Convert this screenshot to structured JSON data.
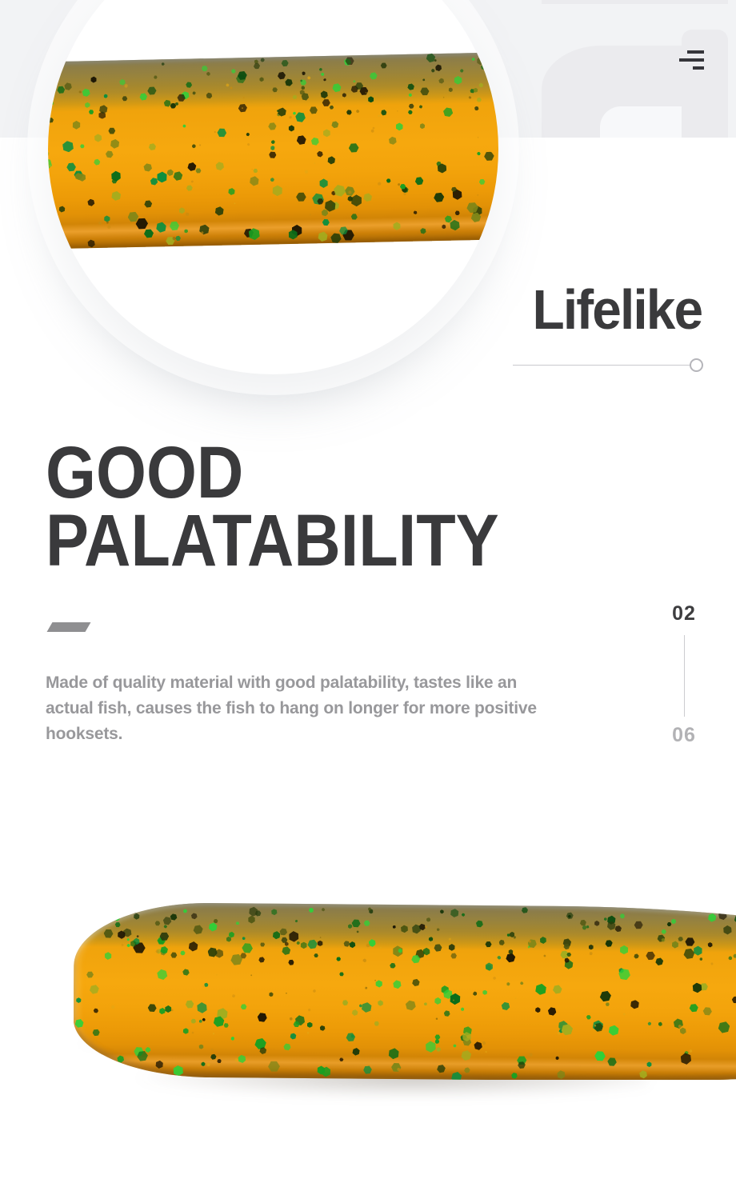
{
  "hero": {
    "heading": "Lifelike",
    "menu_icon": "menu-icon"
  },
  "section": {
    "title_lines": [
      "GOOD",
      "PALATABILITY"
    ],
    "paragraph": "Made of quality material with good palatability, tastes like an actual fish, causes the fish to hang on longer for more positive hooksets.",
    "paragraph_lines": [
      "Made of quality material with good palatability, tastes like an",
      "actual fish, causes the fish to hang on longer for more positive",
      "hooksets."
    ],
    "indicator": {
      "current": "02",
      "total": "06"
    }
  },
  "colors": {
    "band_gray": "#f2f3f5",
    "watermark_gray": "#ebebee",
    "watermark_white": "#f7f8fa",
    "heading_dark": "#3a3a3c",
    "body_text_gray": "#98989b",
    "indicator_current": "#3d3d3f",
    "indicator_total": "#b2b2b5",
    "divider_gray": "#c9c9cd",
    "slash_gray": "#8f8f91",
    "icon_dark": "#35353a",
    "lure_orange": "#f6a80e",
    "lure_orange_bright": "#f0a30c",
    "glitter_body": [
      "#2fd139",
      "#18a022",
      "#0b6d19",
      "#1d3a08",
      "#201703",
      "#7d8618",
      "#a3ad1f",
      "#0e8f3f"
    ],
    "glitter_dark": [
      "#0b4d10",
      "#123307",
      "#1a1504",
      "#0e6b16",
      "#2fd139",
      "#4a5410",
      "#2b3b0c"
    ],
    "glitter_fleck": [
      "#c98c10",
      "#e2a715",
      "#8a6a0a"
    ]
  }
}
